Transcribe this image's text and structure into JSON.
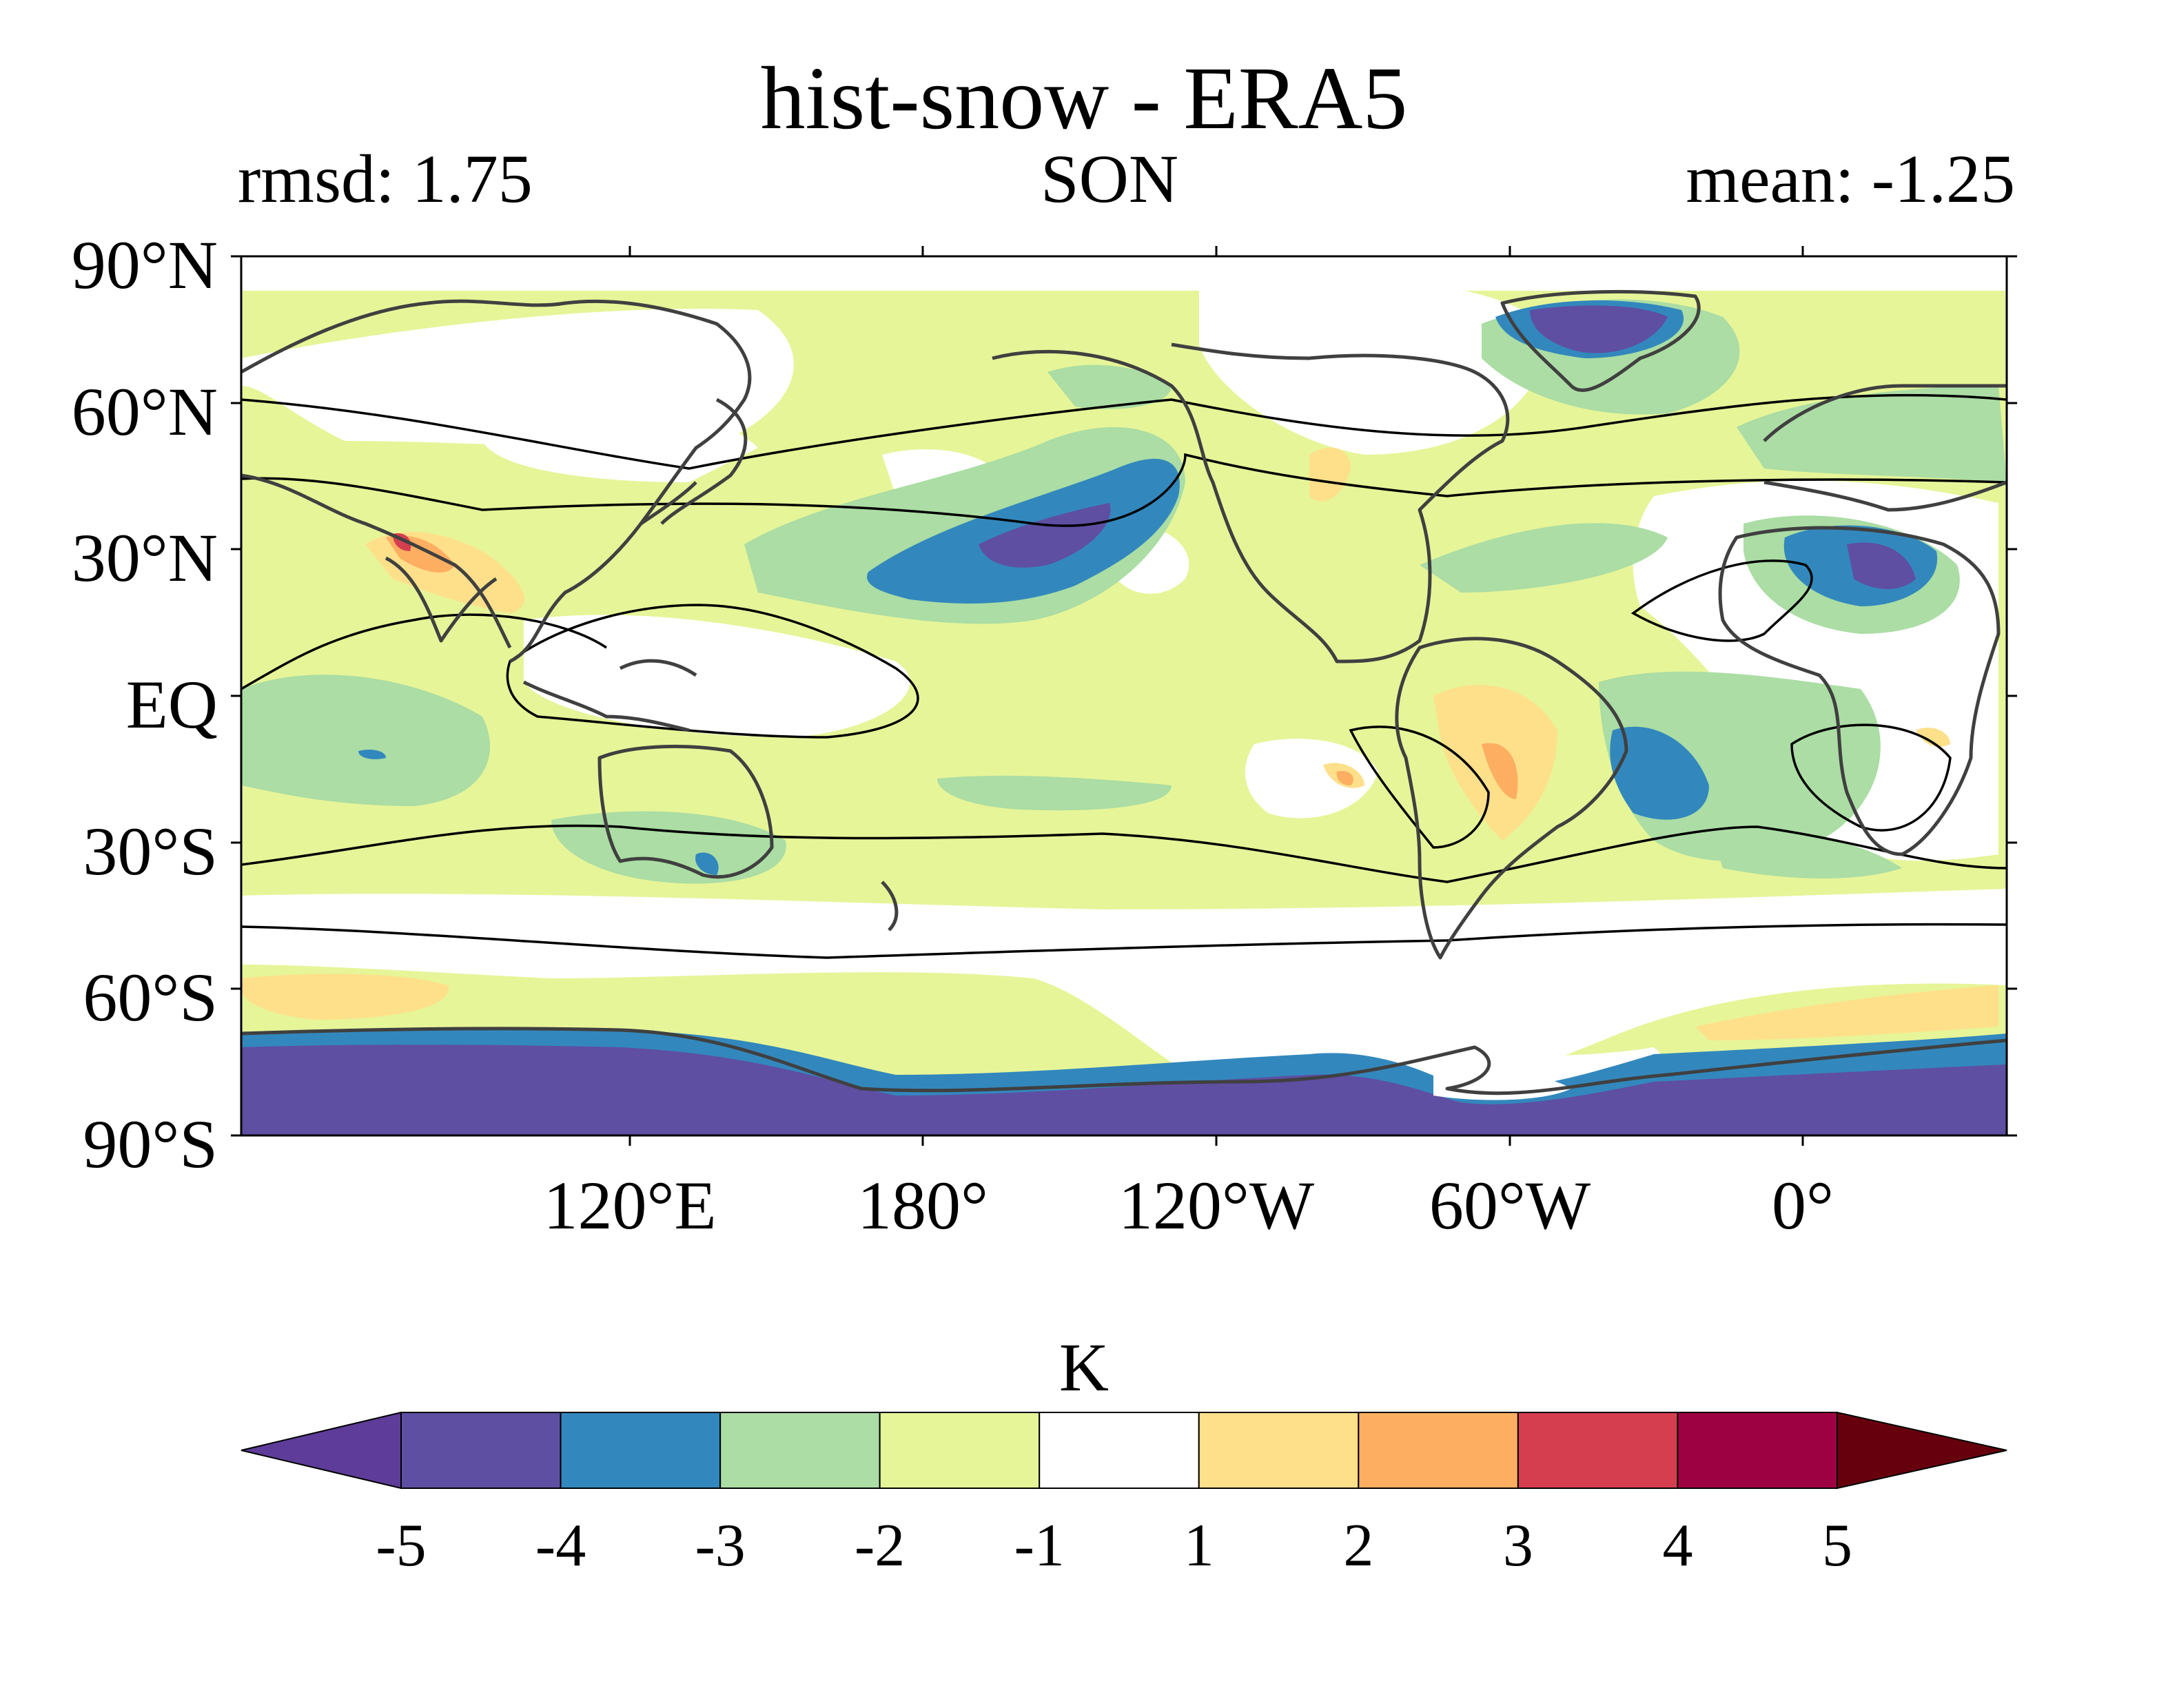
{
  "header": {
    "title": "hist-snow - ERA5",
    "rmsd": "rmsd: 1.75",
    "season": "SON",
    "mean": "mean: -1.25"
  },
  "axes": {
    "lat_ticks": [
      "90°N",
      "60°N",
      "30°N",
      "EQ",
      "30°S",
      "60°S",
      "90°S"
    ],
    "lon_ticks": [
      "120°E",
      "180°",
      "120°W",
      "60°W",
      "0°"
    ]
  },
  "colorbar": {
    "unit": "K",
    "ticks": [
      "-5",
      "-4",
      "-3",
      "-2",
      "-1",
      "1",
      "2",
      "3",
      "4",
      "5"
    ],
    "colors": {
      "below": "#5e3c99",
      "bins": [
        "#5e4fa2",
        "#3288bd",
        "#abdda4",
        "#e6f598",
        "#ffffff",
        "#fee08b",
        "#fdae61",
        "#d53e4f",
        "#9e0142"
      ],
      "above": "#67000d"
    }
  }
}
